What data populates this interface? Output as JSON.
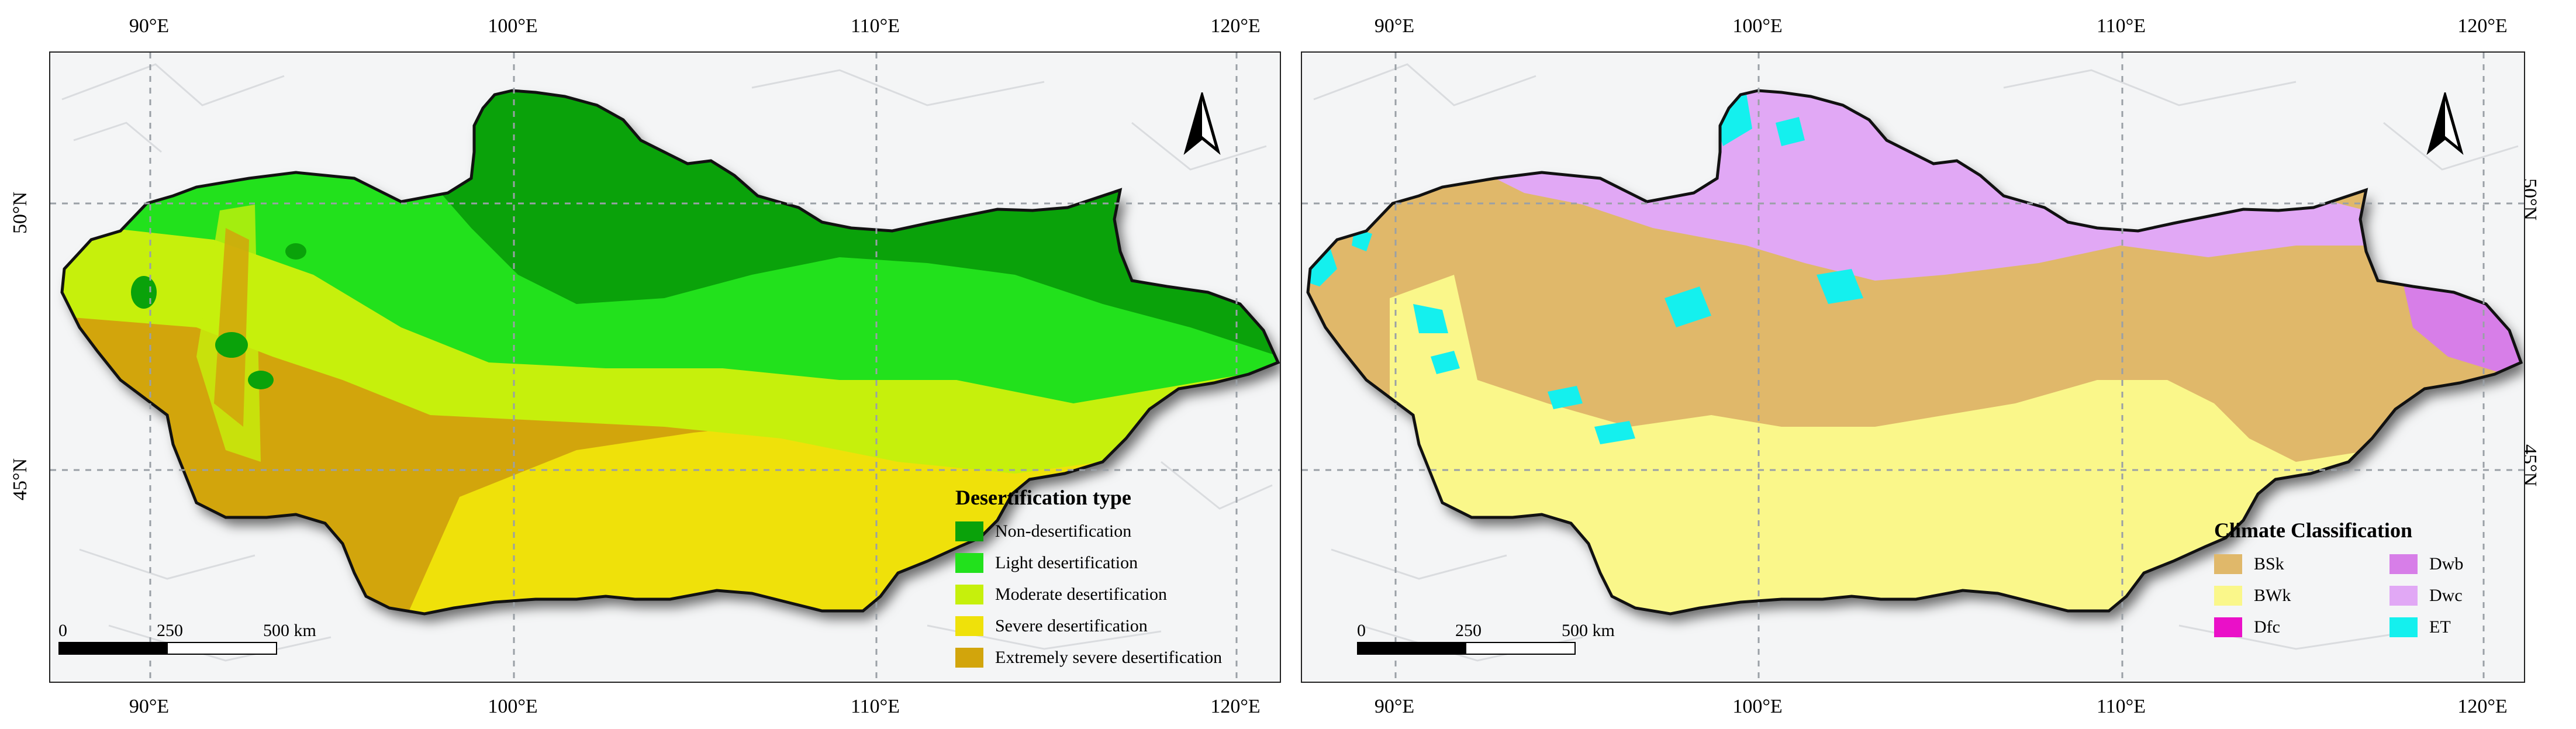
{
  "coordinates": {
    "longitude_labels": [
      "90°E",
      "100°E",
      "110°E",
      "120°E"
    ],
    "latitude_labels": [
      "50°N",
      "45°N"
    ]
  },
  "left_map": {
    "legend": {
      "title": "Desertification type",
      "items": [
        {
          "label": "Non-desertification",
          "color": "#0aa20a"
        },
        {
          "label": "Light desertification",
          "color": "#22e11c"
        },
        {
          "label": "Moderate desertification",
          "color": "#c6f00c"
        },
        {
          "label": "Severe desertification",
          "color": "#efe10a"
        },
        {
          "label": "Extremely severe desertification",
          "color": "#d2a50c"
        }
      ]
    },
    "scale": {
      "labels": [
        "0",
        "250",
        "500 km"
      ]
    }
  },
  "right_map": {
    "legend": {
      "title": "Climate Classification",
      "items": [
        {
          "label": "BSk",
          "color": "#e0b86a"
        },
        {
          "label": "Dwb",
          "color": "#d77ee8"
        },
        {
          "label": "BWk",
          "color": "#faf78a"
        },
        {
          "label": "Dwc",
          "color": "#e1a8f5"
        },
        {
          "label": "Dfc",
          "color": "#ea10c8"
        },
        {
          "label": "ET",
          "color": "#14f0ee"
        }
      ]
    },
    "scale": {
      "labels": [
        "0",
        "250",
        "500 km"
      ]
    }
  },
  "map_style": {
    "gridline_color": "#9aa0a6",
    "terrain_color": "#e9eaec",
    "border_color": "#111111"
  },
  "north_arrow_icon": "north-arrow-icon"
}
